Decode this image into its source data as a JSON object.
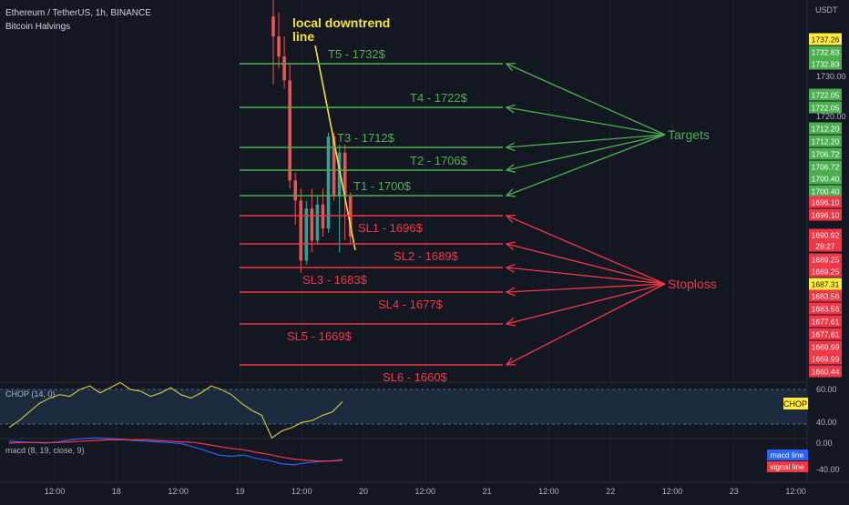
{
  "header": {
    "symbol": "Ethereum / TetherUS, 1h, BINANCE",
    "indicator": "Bitcoin Halvings",
    "currency": "USDT"
  },
  "colors": {
    "background": "#131722",
    "target": "#4caf50",
    "stoploss": "#f23645",
    "trendline": "#f5e33c",
    "candle_up": "#26a69a",
    "candle_down": "#ef5350",
    "chop_line": "#c9c13a",
    "macd_line": "#2962ff",
    "signal_line": "#f23645"
  },
  "annotations": {
    "trendline_label": "local downtrend line",
    "targets_label": "Targets",
    "stoploss_label": "Stoploss"
  },
  "chart_data": {
    "type": "candlestick",
    "price_axis": [
      1730.0,
      1720.0
    ],
    "x_ticks": [
      "12:00",
      "18",
      "12:00",
      "19",
      "12:00",
      "20",
      "12:00",
      "21",
      "12:00",
      "22",
      "12:00",
      "23",
      "12:00"
    ],
    "levels": {
      "targets": [
        {
          "label": "T5 - 1732$",
          "price": 1732
        },
        {
          "label": "T4 - 1722$",
          "price": 1722
        },
        {
          "label": "T3 - 1712$",
          "price": 1712
        },
        {
          "label": "T2 - 1706$",
          "price": 1706
        },
        {
          "label": "T1 - 1700$",
          "price": 1700
        }
      ],
      "stoplosses": [
        {
          "label": "SL1 - 1696$",
          "price": 1696
        },
        {
          "label": "SL2 - 1689$",
          "price": 1689
        },
        {
          "label": "SL3 - 1683$",
          "price": 1683
        },
        {
          "label": "SL4 - 1677$",
          "price": 1677
        },
        {
          "label": "SL5 - 1669$",
          "price": 1669
        },
        {
          "label": "SL6 - 1660$",
          "price": 1660
        }
      ]
    },
    "price_tags": [
      {
        "value": "1737.26",
        "kind": "yellow"
      },
      {
        "value": "1732.83",
        "kind": "green"
      },
      {
        "value": "1732.83",
        "kind": "green"
      },
      {
        "value": "1722.05",
        "kind": "green"
      },
      {
        "value": "1722.05",
        "kind": "green"
      },
      {
        "value": "1712.20",
        "kind": "green"
      },
      {
        "value": "1712.20",
        "kind": "green"
      },
      {
        "value": "1706.72",
        "kind": "green"
      },
      {
        "value": "1706.72",
        "kind": "green"
      },
      {
        "value": "1700.40",
        "kind": "green"
      },
      {
        "value": "1700.40",
        "kind": "green"
      },
      {
        "value": "1696.10",
        "kind": "red"
      },
      {
        "value": "1696.10",
        "kind": "red"
      },
      {
        "value": "1690.92",
        "kind": "red"
      },
      {
        "value": "28:27",
        "kind": "red"
      },
      {
        "value": "1689.25",
        "kind": "red"
      },
      {
        "value": "1689.25",
        "kind": "red"
      },
      {
        "value": "1687.31",
        "kind": "yellow"
      },
      {
        "value": "1683.56",
        "kind": "red"
      },
      {
        "value": "1683.56",
        "kind": "red"
      },
      {
        "value": "1677.61",
        "kind": "red"
      },
      {
        "value": "1677.61",
        "kind": "red"
      },
      {
        "value": "1669.99",
        "kind": "red"
      },
      {
        "value": "1669.99",
        "kind": "red"
      },
      {
        "value": "1660.44",
        "kind": "red"
      }
    ],
    "candles": [
      {
        "o": 1745,
        "h": 1752,
        "l": 1728,
        "c": 1740
      },
      {
        "o": 1740,
        "h": 1746,
        "l": 1732,
        "c": 1735
      },
      {
        "o": 1735,
        "h": 1740,
        "l": 1727,
        "c": 1729
      },
      {
        "o": 1729,
        "h": 1733,
        "l": 1702,
        "c": 1704
      },
      {
        "o": 1704,
        "h": 1706,
        "l": 1693,
        "c": 1699
      },
      {
        "o": 1699,
        "h": 1702,
        "l": 1681,
        "c": 1684
      },
      {
        "o": 1684,
        "h": 1699,
        "l": 1683,
        "c": 1697
      },
      {
        "o": 1697,
        "h": 1702,
        "l": 1686,
        "c": 1689
      },
      {
        "o": 1689,
        "h": 1700,
        "l": 1688,
        "c": 1698
      },
      {
        "o": 1698,
        "h": 1702,
        "l": 1690,
        "c": 1692
      },
      {
        "o": 1692,
        "h": 1716,
        "l": 1691,
        "c": 1715
      },
      {
        "o": 1715,
        "h": 1716,
        "l": 1699,
        "c": 1700
      },
      {
        "o": 1700,
        "h": 1713,
        "l": 1686,
        "c": 1711
      },
      {
        "o": 1711,
        "h": 1713,
        "l": 1689,
        "c": 1700
      },
      {
        "o": 1700,
        "h": 1701,
        "l": 1688,
        "c": 1690
      }
    ],
    "chop": {
      "label": "CHOP (14, 0)",
      "tag": "CHOP",
      "ticks": [
        "60.00",
        "40.00"
      ],
      "values": [
        38,
        42,
        47,
        52,
        55,
        57,
        56,
        60,
        62,
        58,
        61,
        64,
        60,
        59,
        56,
        58,
        61,
        57,
        55,
        58,
        62,
        60,
        57,
        52,
        48,
        45,
        32,
        36,
        38,
        41,
        42,
        45,
        47,
        53
      ]
    },
    "macd": {
      "label": "macd (8, 19, close, 9)",
      "ticks": [
        "0.00",
        "-40.00"
      ],
      "legend": [
        "macd line",
        "signal line"
      ],
      "macd_values": [
        3,
        2,
        1,
        0,
        2,
        5,
        7,
        8,
        7,
        6,
        4,
        3,
        2,
        1,
        -1,
        -6,
        -12,
        -18,
        -20,
        -18,
        -23,
        -26,
        -31,
        -33,
        -30,
        -28,
        -27,
        -25
      ],
      "signal_values": [
        0,
        1,
        1,
        1,
        1,
        2,
        3,
        4,
        5,
        5,
        5,
        5,
        4,
        3,
        2,
        1,
        -2,
        -5,
        -8,
        -10,
        -14,
        -17,
        -21,
        -24,
        -26,
        -27,
        -27,
        -26
      ]
    }
  }
}
